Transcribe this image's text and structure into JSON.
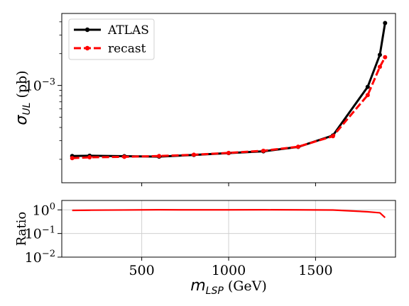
{
  "chart_data": [
    {
      "type": "line",
      "title": "",
      "xlabel": {
        "symbol": "m",
        "subscript": "LSP",
        "unit": " (GeV)"
      },
      "ylabel": {
        "symbol": "σ",
        "subscript": "UL",
        "unit": " (pb)"
      },
      "yscale": "log",
      "ylim": [
        0.00012,
        0.0048
      ],
      "xlim": [
        40,
        1960
      ],
      "grid": false,
      "legend": {
        "placement": "top-left"
      },
      "yticks": [
        {
          "base": "10",
          "exp": "−3",
          "value": 0.001
        }
      ],
      "series": [
        {
          "name": "ATLAS",
          "color": "#000000",
          "style": "solid",
          "x": [
            100,
            200,
            400,
            600,
            800,
            1000,
            1200,
            1400,
            1600,
            1800,
            1870,
            1900
          ],
          "y": [
            0.000215,
            0.000216,
            0.000214,
            0.000212,
            0.00022,
            0.000229,
            0.000238,
            0.000262,
            0.000336,
            0.00097,
            0.00195,
            0.0039
          ]
        },
        {
          "name": "recast",
          "color": "#ff0000",
          "style": "dashed",
          "x": [
            100,
            200,
            400,
            600,
            800,
            1000,
            1200,
            1400,
            1600,
            1800,
            1870,
            1900
          ],
          "y": [
            0.000205,
            0.000209,
            0.000211,
            0.000215,
            0.000221,
            0.00023,
            0.000241,
            0.000263,
            0.000331,
            0.00081,
            0.0015,
            0.00185
          ]
        }
      ]
    },
    {
      "type": "line",
      "title": "",
      "ylabel": "Ratio",
      "yscale": "log",
      "ylim": [
        0.01,
        2.5
      ],
      "xlim": [
        40,
        1960
      ],
      "grid": true,
      "xticks": [
        "500",
        "1000",
        "1500"
      ],
      "xtick_values": [
        500,
        1000,
        1500
      ],
      "yticks": [
        {
          "base": "10",
          "exp": "0",
          "value": 1
        },
        {
          "base": "10",
          "exp": "−1",
          "value": 0.1
        },
        {
          "base": "10",
          "exp": "−2",
          "value": 0.01
        }
      ],
      "series": [
        {
          "color": "#ff0000",
          "style": "solid",
          "x": [
            100,
            200,
            400,
            600,
            800,
            1000,
            1200,
            1400,
            1600,
            1800,
            1870,
            1900
          ],
          "y": [
            0.95,
            0.97,
            0.99,
            1.01,
            1.0,
            1.0,
            1.01,
            1.0,
            0.985,
            0.83,
            0.75,
            0.47
          ]
        }
      ]
    }
  ]
}
